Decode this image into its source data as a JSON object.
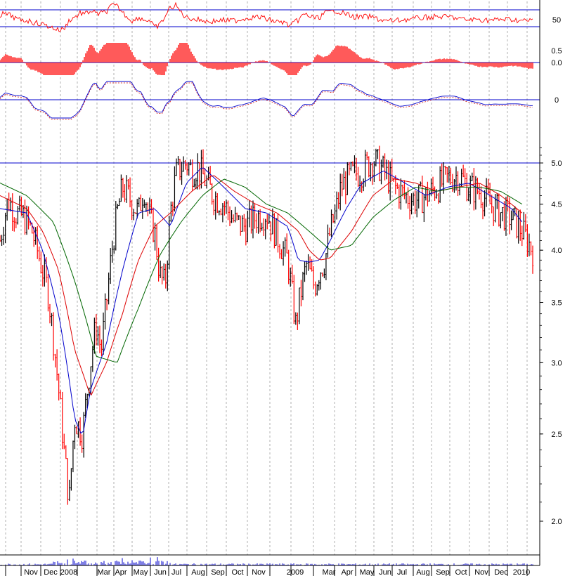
{
  "chart_data": {
    "type": "line",
    "title": "",
    "xlabel": "",
    "ylabel": "",
    "x_axis_labels": [
      "Nov",
      "Dec",
      "2008",
      "Mar",
      "Apr",
      "May",
      "Jun",
      "Jul",
      "Aug",
      "Sep",
      "Oct",
      "Nov",
      "2009",
      "Mar",
      "Apr",
      "May",
      "Jun",
      "Jul",
      "Aug",
      "Sep",
      "Oct",
      "Nov",
      "Dec",
      "2010"
    ],
    "price_panel": {
      "scale": "log",
      "ylim": [
        1.85,
        5.3
      ],
      "y_ticks": [
        {
          "value": 5.0,
          "label": "5.0"
        },
        {
          "value": 4.5,
          "label": "4.5"
        },
        {
          "value": 4.0,
          "label": "4.0"
        },
        {
          "value": 3.5,
          "label": "3.5"
        },
        {
          "value": 3.0,
          "label": "3.0"
        },
        {
          "value": 2.5,
          "label": "2.5"
        },
        {
          "value": 2.0,
          "label": "2.0"
        }
      ],
      "reference_line": 5.0,
      "price_t": [
        0,
        0.015,
        0.03,
        0.045,
        0.06,
        0.075,
        0.09,
        0.1,
        0.11,
        0.12,
        0.13,
        0.14,
        0.155,
        0.17,
        0.18,
        0.19,
        0.2,
        0.21,
        0.22,
        0.23,
        0.24,
        0.25,
        0.26,
        0.27,
        0.28,
        0.29,
        0.3,
        0.31,
        0.32,
        0.33,
        0.34,
        0.35,
        0.36,
        0.37,
        0.38,
        0.4,
        0.42,
        0.44,
        0.46,
        0.48,
        0.5,
        0.52,
        0.54,
        0.555,
        0.565,
        0.575,
        0.59,
        0.6,
        0.61,
        0.62,
        0.63,
        0.64,
        0.66,
        0.68,
        0.7,
        0.72,
        0.74,
        0.76,
        0.78,
        0.8,
        0.82,
        0.84,
        0.86,
        0.88,
        0.9,
        0.92,
        0.94,
        0.96,
        0.98,
        1.0
      ],
      "price_close": [
        4.1,
        4.55,
        4.4,
        4.35,
        4.2,
        3.9,
        3.6,
        3.2,
        2.8,
        2.4,
        2.1,
        2.6,
        2.5,
        3.0,
        3.3,
        3.1,
        3.5,
        4.0,
        4.4,
        4.7,
        4.6,
        4.5,
        4.4,
        4.7,
        4.35,
        4.2,
        3.75,
        3.65,
        4.4,
        4.85,
        4.95,
        5.0,
        4.9,
        4.95,
        4.85,
        4.6,
        4.5,
        4.3,
        4.25,
        4.35,
        4.4,
        4.15,
        3.9,
        3.3,
        3.6,
        3.85,
        3.65,
        3.8,
        3.9,
        4.2,
        4.4,
        4.7,
        4.85,
        4.9,
        5.05,
        4.9,
        4.7,
        4.6,
        4.55,
        4.6,
        4.7,
        4.8,
        4.85,
        4.7,
        4.65,
        4.5,
        4.4,
        4.35,
        4.2,
        4.0
      ],
      "moving_averages": [
        {
          "color": "#0000cc",
          "t": [
            0,
            0.05,
            0.08,
            0.11,
            0.14,
            0.155,
            0.17,
            0.2,
            0.23,
            0.26,
            0.29,
            0.32,
            0.35,
            0.38,
            0.42,
            0.46,
            0.5,
            0.54,
            0.56,
            0.58,
            0.6,
            0.62,
            0.65,
            0.68,
            0.72,
            0.76,
            0.8,
            0.84,
            0.88,
            0.92,
            0.96,
            0.98
          ],
          "values": [
            4.45,
            4.4,
            4.0,
            3.4,
            2.6,
            2.48,
            2.8,
            3.15,
            3.8,
            4.4,
            4.45,
            4.25,
            4.75,
            4.95,
            4.7,
            4.45,
            4.4,
            4.25,
            3.9,
            3.88,
            3.9,
            4.1,
            4.45,
            4.75,
            4.9,
            4.75,
            4.6,
            4.7,
            4.75,
            4.6,
            4.45,
            4.3
          ]
        },
        {
          "color": "#dd0000",
          "t": [
            0,
            0.05,
            0.08,
            0.11,
            0.14,
            0.17,
            0.2,
            0.23,
            0.26,
            0.29,
            0.32,
            0.36,
            0.4,
            0.44,
            0.48,
            0.52,
            0.56,
            0.58,
            0.6,
            0.62,
            0.66,
            0.7,
            0.74,
            0.78,
            0.82,
            0.86,
            0.9,
            0.94,
            0.98
          ],
          "values": [
            4.6,
            4.45,
            4.2,
            3.8,
            3.1,
            2.75,
            3.0,
            3.4,
            3.9,
            4.25,
            4.4,
            4.65,
            4.85,
            4.65,
            4.5,
            4.4,
            4.2,
            4.0,
            3.9,
            3.92,
            4.2,
            4.6,
            4.8,
            4.75,
            4.65,
            4.7,
            4.75,
            4.6,
            4.4
          ]
        },
        {
          "color": "#006600",
          "t": [
            0,
            0.05,
            0.1,
            0.14,
            0.18,
            0.22,
            0.26,
            0.3,
            0.34,
            0.38,
            0.42,
            0.46,
            0.5,
            0.54,
            0.58,
            0.62,
            0.66,
            0.7,
            0.74,
            0.78,
            0.82,
            0.86,
            0.9,
            0.94,
            0.98
          ],
          "values": [
            4.75,
            4.6,
            4.3,
            3.7,
            3.05,
            3.0,
            3.45,
            3.95,
            4.3,
            4.6,
            4.8,
            4.7,
            4.5,
            4.4,
            4.2,
            4.0,
            4.05,
            4.35,
            4.55,
            4.7,
            4.65,
            4.7,
            4.7,
            4.65,
            4.5
          ]
        }
      ]
    },
    "indicator_panels": [
      {
        "name": "oscillator-1",
        "y_ticks": [
          {
            "value": 50,
            "label": "50"
          }
        ],
        "ylim": [
          0,
          100
        ],
        "reference_lines": [
          70,
          50
        ]
      },
      {
        "name": "histogram",
        "y_ticks": [
          {
            "value": 0.5,
            "label": "0.5"
          },
          {
            "value": 0.0,
            "label": "0.0"
          }
        ],
        "ylim": [
          -0.5,
          0.8
        ]
      },
      {
        "name": "oscillator-2",
        "y_ticks": [
          {
            "value": 0,
            "label": "0"
          }
        ],
        "ylim": [
          -1,
          1
        ],
        "reference_lines": [
          0
        ]
      }
    ],
    "grid": true,
    "legend": "none"
  }
}
